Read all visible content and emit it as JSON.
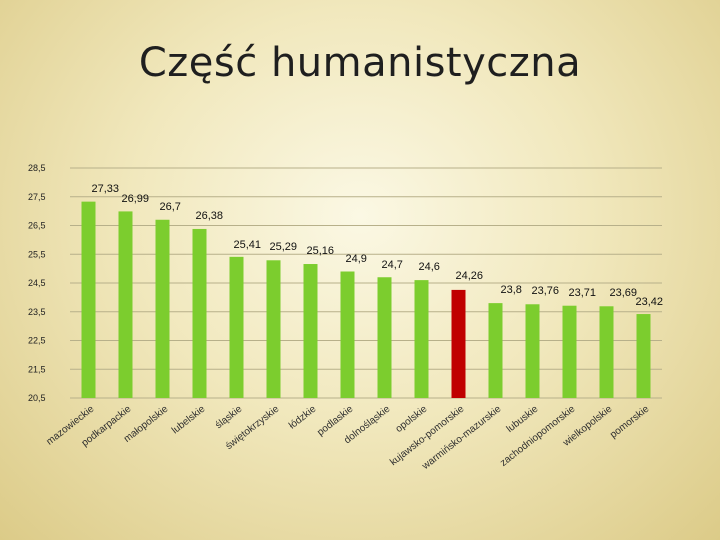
{
  "title": "Część humanistyczna",
  "chart_data": {
    "type": "bar",
    "title": "Część humanistyczna",
    "xlabel": "",
    "ylabel": "",
    "ylim": [
      20.5,
      28.5
    ],
    "yticks": [
      "28,5",
      "27,5",
      "26,5",
      "25,5",
      "24,5",
      "23,5",
      "22,5",
      "21,5",
      "20,5"
    ],
    "ytick_values": [
      28.5,
      27.5,
      26.5,
      25.5,
      24.5,
      23.5,
      22.5,
      21.5,
      20.5
    ],
    "grid": true,
    "legend": "none",
    "categories": [
      "mazowieckie",
      "podkarpackie",
      "małopolskie",
      "lubelskie",
      "śląskie",
      "świętokrzyskie",
      "łódzkie",
      "podlaskie",
      "dolnośląskie",
      "opolskie",
      "kujawsko-pomorskie",
      "warmińsko-mazurskie",
      "lubuskie",
      "zachodniopomorskie",
      "wielkopolskie",
      "pomorskie"
    ],
    "values": [
      27.33,
      26.99,
      26.7,
      26.38,
      25.41,
      25.29,
      25.16,
      24.9,
      24.7,
      24.6,
      24.26,
      23.8,
      23.76,
      23.71,
      23.69,
      23.42
    ],
    "value_labels": [
      "27,33",
      "26,99",
      "26,7",
      "26,38",
      "25,41",
      "25,29",
      "25,16",
      "24,9",
      "24,7",
      "24,6",
      "24,26",
      "23,8",
      "23,76",
      "23,71",
      "23,69",
      "23,42"
    ],
    "bar_color": "#7ccd2e",
    "highlight_index": 10,
    "highlight_color": "#c00000",
    "grid_color": "#b7b08a"
  }
}
